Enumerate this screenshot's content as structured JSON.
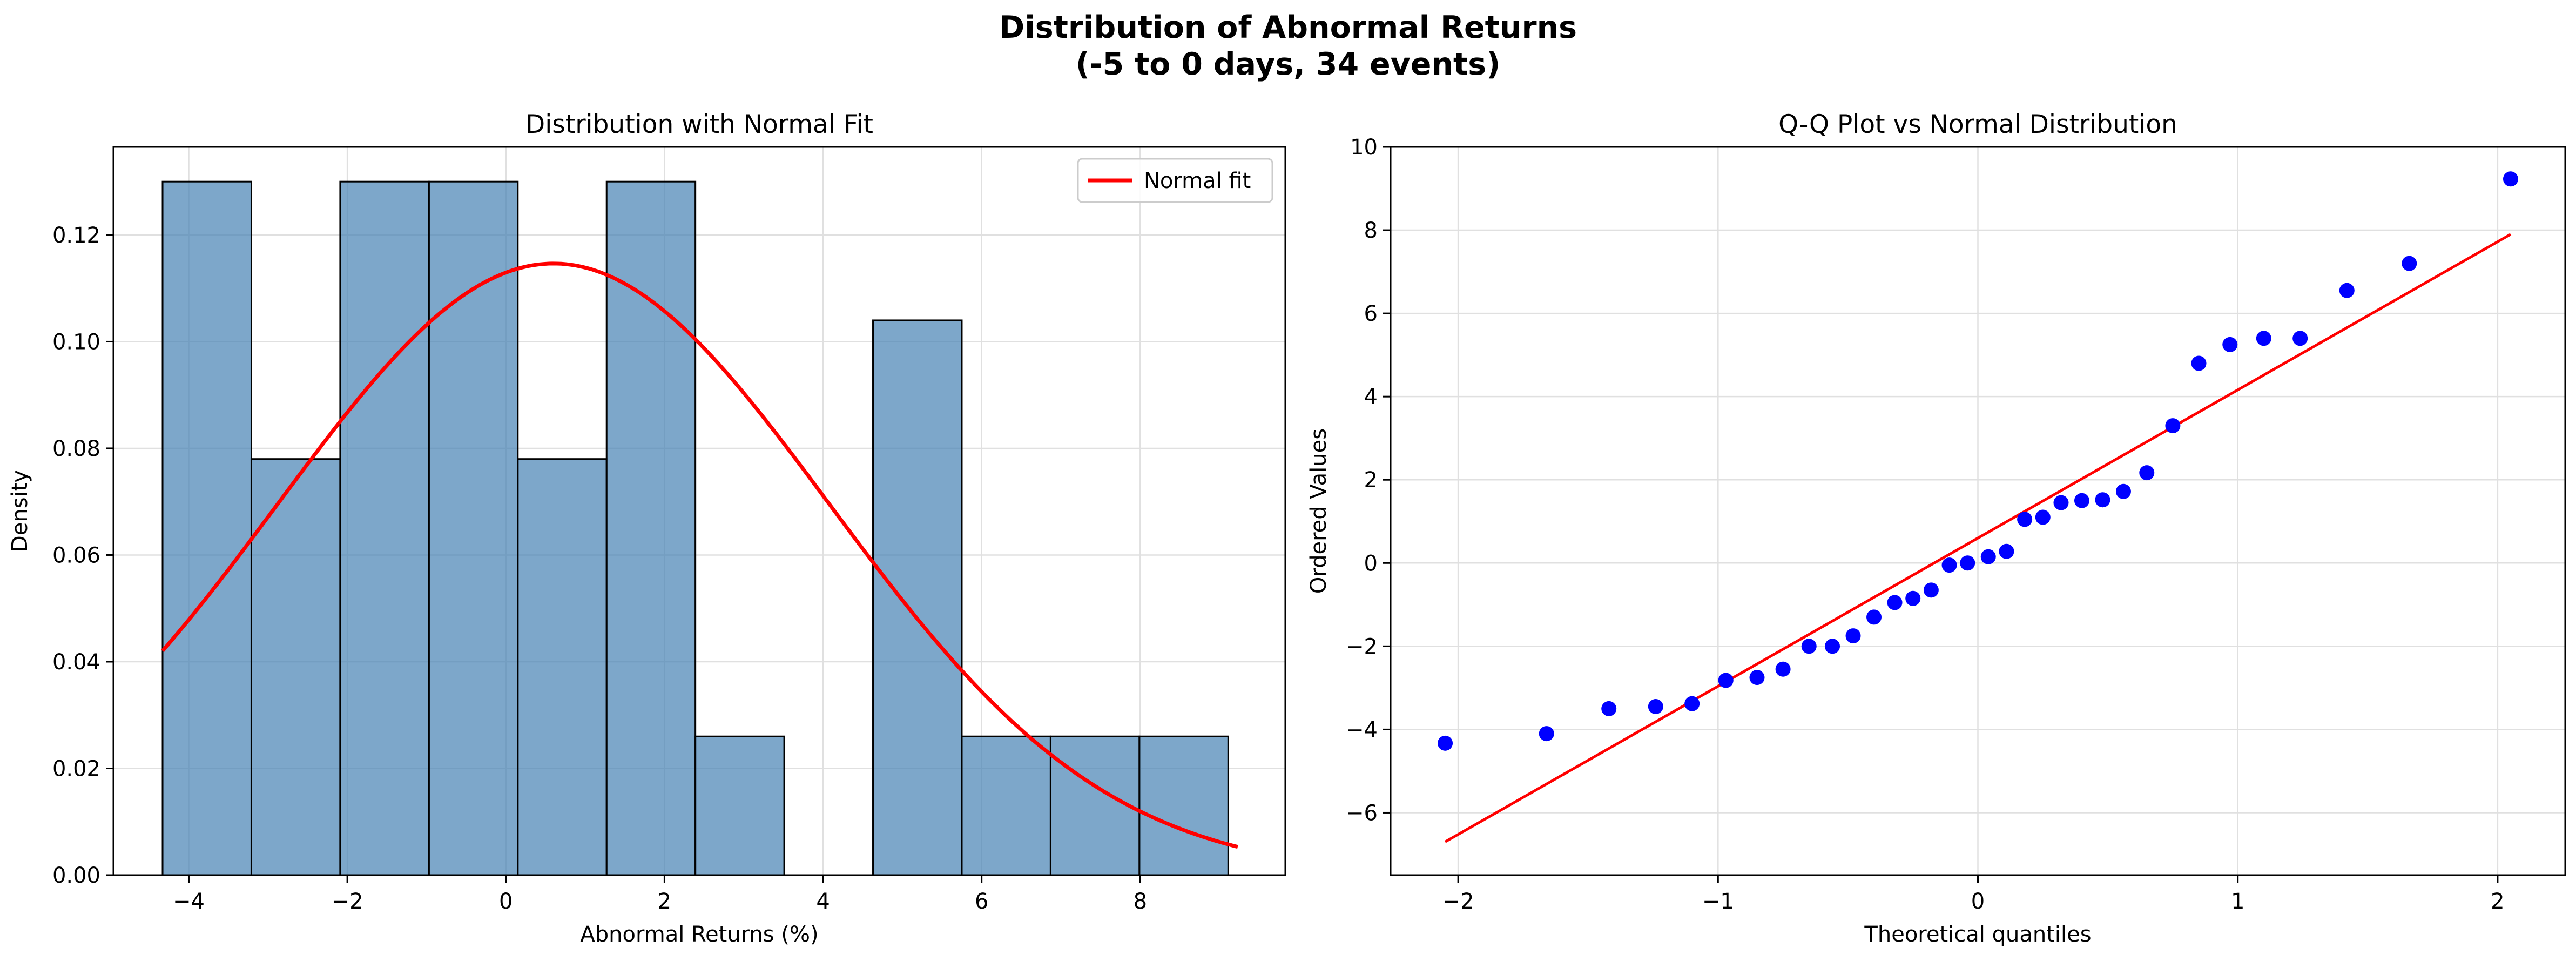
{
  "figure": {
    "title_line1": "Distribution of Abnormal Returns",
    "title_line2": "(-5 to 0 days, 34 events)"
  },
  "chart_data": [
    {
      "type": "bar",
      "title": "Distribution with Normal Fit",
      "xlabel": "Abnormal Returns (%)",
      "ylabel": "Density",
      "xlim": [
        -4.95,
        9.83
      ],
      "ylim": [
        0,
        0.1365
      ],
      "xticks": [
        -4,
        -2,
        0,
        2,
        4,
        6,
        8
      ],
      "xtick_labels": [
        "−4",
        "−2",
        "0",
        "2",
        "4",
        "6",
        "8"
      ],
      "yticks": [
        0,
        0.02,
        0.04,
        0.06,
        0.08,
        0.1,
        0.12
      ],
      "ytick_labels": [
        "0.00",
        "0.02",
        "0.04",
        "0.06",
        "0.08",
        "0.10",
        "0.12"
      ],
      "grid": true,
      "bin_edges": [
        -4.33,
        -3.21,
        -2.09,
        -0.97,
        0.15,
        1.27,
        2.39,
        3.51,
        4.63,
        5.75,
        6.87,
        7.99,
        9.11
      ],
      "values": [
        0.13,
        0.078,
        0.13,
        0.13,
        0.078,
        0.13,
        0.026,
        0.0,
        0.104,
        0.026,
        0.026,
        0.026
      ],
      "bar_color": "#4682b4",
      "normal_fit": {
        "label": "Normal fit",
        "mean": 0.6,
        "std": 3.48,
        "xmin": -4.33,
        "xmax": 9.23,
        "color": "#ff0000"
      },
      "legend": {
        "position": "upper right",
        "entries": [
          "Normal fit"
        ]
      }
    },
    {
      "type": "scatter",
      "title": "Q-Q Plot vs Normal Distribution",
      "xlabel": "Theoretical quantiles",
      "ylabel": "Ordered Values",
      "xlim": [
        -2.26,
        2.26
      ],
      "ylim": [
        -7.5,
        10
      ],
      "xticks": [
        -2,
        -1,
        0,
        1,
        2
      ],
      "xtick_labels": [
        "−2",
        "−1",
        "0",
        "1",
        "2"
      ],
      "yticks": [
        -6,
        -4,
        -2,
        0,
        2,
        4,
        6,
        8,
        10
      ],
      "ytick_labels": [
        "−6",
        "−4",
        "−2",
        "0",
        "2",
        "4",
        "6",
        "8",
        "10"
      ],
      "grid": true,
      "point_color": "#0000ff",
      "points": [
        [
          -2.05,
          -4.33
        ],
        [
          -1.66,
          -4.1
        ],
        [
          -1.42,
          -3.5
        ],
        [
          -1.24,
          -3.45
        ],
        [
          -1.1,
          -3.38
        ],
        [
          -0.97,
          -2.82
        ],
        [
          -0.85,
          -2.75
        ],
        [
          -0.75,
          -2.55
        ],
        [
          -0.65,
          -2.0
        ],
        [
          -0.56,
          -2.0
        ],
        [
          -0.48,
          -1.75
        ],
        [
          -0.4,
          -1.3
        ],
        [
          -0.32,
          -0.95
        ],
        [
          -0.25,
          -0.85
        ],
        [
          -0.18,
          -0.65
        ],
        [
          -0.11,
          -0.05
        ],
        [
          -0.04,
          0.0
        ],
        [
          0.04,
          0.15
        ],
        [
          0.11,
          0.28
        ],
        [
          0.18,
          1.05
        ],
        [
          0.25,
          1.1
        ],
        [
          0.32,
          1.45
        ],
        [
          0.4,
          1.5
        ],
        [
          0.48,
          1.52
        ],
        [
          0.56,
          1.72
        ],
        [
          0.65,
          2.17
        ],
        [
          0.75,
          3.3
        ],
        [
          0.85,
          4.8
        ],
        [
          0.97,
          5.25
        ],
        [
          1.1,
          5.4
        ],
        [
          1.24,
          5.4
        ],
        [
          1.42,
          6.55
        ],
        [
          1.66,
          7.2
        ],
        [
          2.05,
          9.23
        ]
      ],
      "fit_line": {
        "x": [
          -2.05,
          2.05
        ],
        "y": [
          -6.7,
          7.9
        ],
        "color": "#ff0000"
      }
    }
  ]
}
